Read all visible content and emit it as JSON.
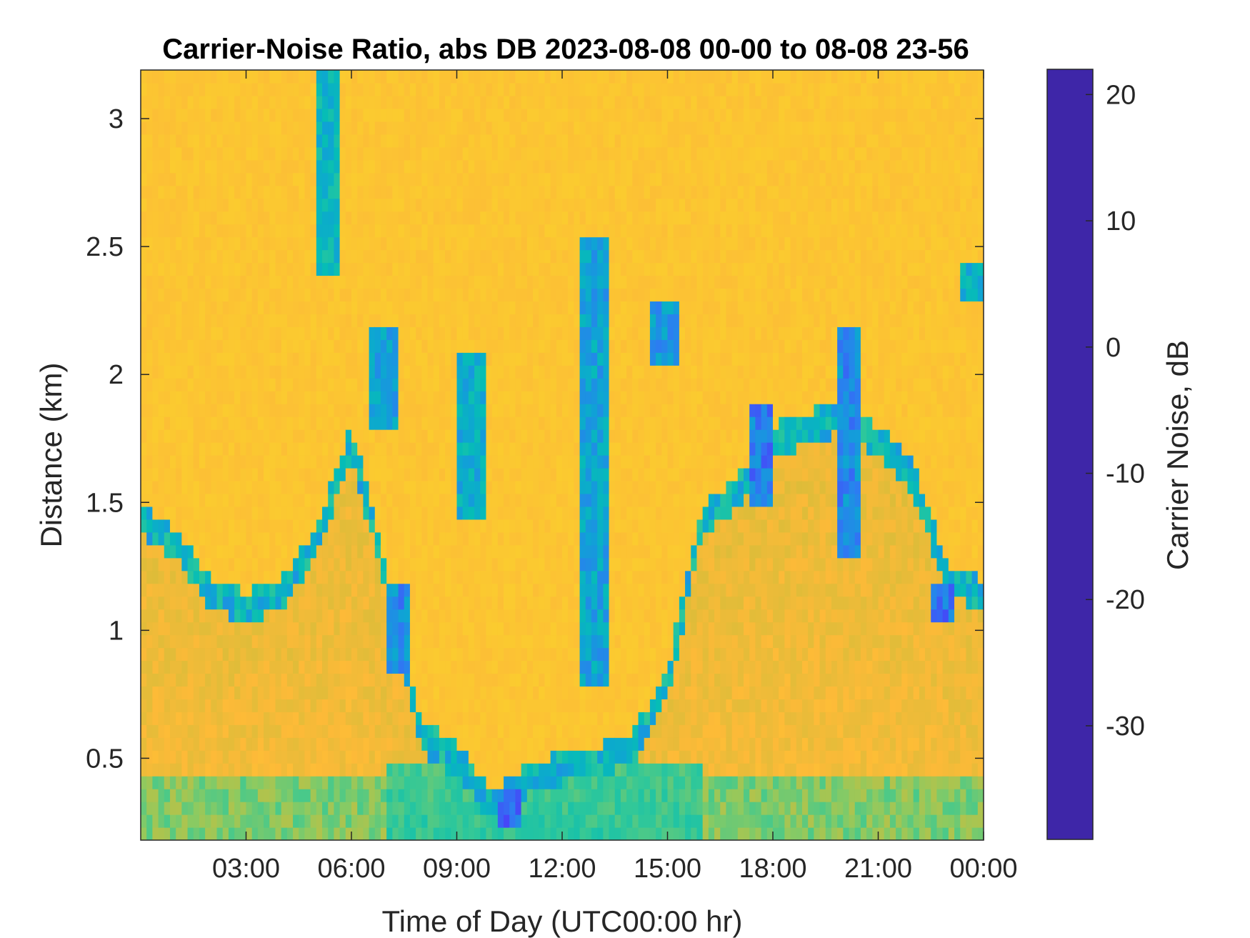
{
  "chart_data": {
    "type": "heatmap",
    "title": "Carrier-Noise Ratio, abs DB 2023-08-08 00-00 to 08-08 23-56",
    "xlabel": "Time of Day (UTC00:00 hr)",
    "ylabel": "Distance (km)",
    "colorbar_label": "Carrier Noise, dB",
    "x_unit": "hours",
    "xlim": [
      0,
      24
    ],
    "ylim": [
      0.18,
      3.19
    ],
    "clim": [
      -39,
      22
    ],
    "x_ticks": [
      {
        "value": 3,
        "label": "03:00"
      },
      {
        "value": 6,
        "label": "06:00"
      },
      {
        "value": 9,
        "label": "09:00"
      },
      {
        "value": 12,
        "label": "12:00"
      },
      {
        "value": 15,
        "label": "15:00"
      },
      {
        "value": 18,
        "label": "18:00"
      },
      {
        "value": 21,
        "label": "21:00"
      },
      {
        "value": 24,
        "label": "00:00"
      }
    ],
    "y_ticks": [
      {
        "value": 0.5,
        "label": "0.5"
      },
      {
        "value": 1,
        "label": "1"
      },
      {
        "value": 1.5,
        "label": "1.5"
      },
      {
        "value": 2,
        "label": "2"
      },
      {
        "value": 2.5,
        "label": "2.5"
      },
      {
        "value": 3,
        "label": "3"
      }
    ],
    "colorbar_ticks": [
      {
        "value": 20,
        "label": "20"
      },
      {
        "value": 10,
        "label": "10"
      },
      {
        "value": 0,
        "label": "0"
      },
      {
        "value": -10,
        "label": "-10"
      },
      {
        "value": -20,
        "label": "-20"
      },
      {
        "value": -30,
        "label": "-30"
      }
    ],
    "colormap": [
      "#3e26a8",
      "#4743f8",
      "#2d7cf2",
      "#0fa3d5",
      "#06bdb6",
      "#32c898",
      "#8cca61",
      "#d1bd3a",
      "#fdba38",
      "#f9d928",
      "#f9fb0e"
    ],
    "background_value": -29,
    "boundary_layer_top_km": [
      [
        0,
        1.5
      ],
      [
        1,
        1.4
      ],
      [
        2,
        1.2
      ],
      [
        3,
        1.15
      ],
      [
        4,
        1.2
      ],
      [
        5,
        1.4
      ],
      [
        6,
        1.8
      ],
      [
        7,
        1.25
      ],
      [
        8,
        0.65
      ],
      [
        9,
        0.55
      ],
      [
        10,
        0.38
      ],
      [
        11,
        0.48
      ],
      [
        12,
        0.52
      ],
      [
        13,
        0.55
      ],
      [
        14,
        0.6
      ],
      [
        15,
        0.85
      ],
      [
        16,
        1.5
      ],
      [
        17,
        1.6
      ],
      [
        18,
        1.8
      ],
      [
        19,
        1.85
      ],
      [
        20,
        1.9
      ],
      [
        21,
        1.8
      ],
      [
        22,
        1.65
      ],
      [
        23,
        1.25
      ],
      [
        24,
        1.2
      ]
    ],
    "strong_returns": [
      {
        "t": 5.3,
        "z0": 2.4,
        "z1": 3.19,
        "v": 4
      },
      {
        "t": 6.9,
        "z0": 1.8,
        "z1": 2.2,
        "v": 8
      },
      {
        "t": 7.3,
        "z0": 0.85,
        "z1": 1.2,
        "v": 12
      },
      {
        "t": 9.4,
        "z0": 1.45,
        "z1": 2.1,
        "v": 6
      },
      {
        "t": 10.5,
        "z0": 0.25,
        "z1": 0.38,
        "v": 16
      },
      {
        "t": 12.9,
        "z0": 0.8,
        "z1": 2.55,
        "v": 8
      },
      {
        "t": 14.9,
        "z0": 2.05,
        "z1": 2.3,
        "v": 10
      },
      {
        "t": 17.6,
        "z0": 1.5,
        "z1": 1.9,
        "v": 14
      },
      {
        "t": 20.2,
        "z0": 1.3,
        "z1": 2.2,
        "v": 12
      },
      {
        "t": 22.8,
        "z0": 1.05,
        "z1": 1.2,
        "v": 16
      },
      {
        "t": 23.65,
        "z0": 2.3,
        "z1": 2.45,
        "v": 6
      }
    ]
  }
}
